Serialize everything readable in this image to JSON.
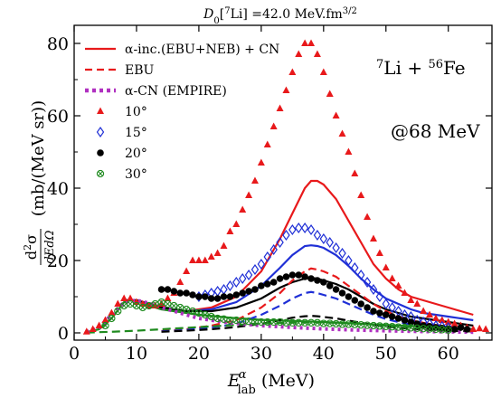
{
  "chart_data": {
    "type": "line",
    "title_prefix": "D",
    "title_sub": "0",
    "title_main": "[",
    "title_sup": "7",
    "title_rest": "Li] =42.0 MeV.fm",
    "title_exp": "3/2",
    "ylabel_numerator": "d",
    "ylabel_numerator_sup": "2",
    "ylabel_numerator_sym": "σ",
    "ylabel_denominator": "dEdΩ",
    "ylabel_units": "(mb/(MeV sr))",
    "xlabel_symbol": "E",
    "xlabel_sup": "α",
    "xlabel_sub": "lab",
    "xlabel_units": "(MeV)",
    "xlim": [
      0,
      67
    ],
    "ylim": [
      -2,
      85
    ],
    "xticks": [
      0,
      10,
      20,
      30,
      40,
      50,
      60
    ],
    "yticks": [
      0,
      20,
      40,
      60,
      80
    ],
    "annotations": {
      "reaction_sup1": "7",
      "reaction_el1": "Li + ",
      "reaction_sup2": "56",
      "reaction_el2": "Fe",
      "energy": "@68 MeV"
    },
    "legend": {
      "placement": "top-left",
      "entries": [
        {
          "label": "α-inc.(EBU+NEB) + CN",
          "style": "solid",
          "color": "#e8191b"
        },
        {
          "label": "EBU",
          "style": "dashed",
          "color": "#e8191b"
        },
        {
          "label": "α-CN (EMPIRE)",
          "style": "dotted",
          "color": "#b030c0"
        },
        {
          "label": "10°",
          "marker": "triangle",
          "color": "#e8191b"
        },
        {
          "label": "15°",
          "marker": "diamond",
          "color": "#1f2fd6"
        },
        {
          "label": "20°",
          "marker": "circle",
          "color": "#000000"
        },
        {
          "label": "30°",
          "marker": "xcircle",
          "color": "#1e8a1e"
        }
      ]
    },
    "series": [
      {
        "name": "10°",
        "kind": "points",
        "marker": "triangle",
        "color": "#e8191b",
        "x": [
          2,
          3,
          4,
          5,
          6,
          7,
          8,
          9,
          10,
          11,
          12,
          13,
          14,
          15,
          16,
          17,
          18,
          19,
          20,
          21,
          22,
          23,
          24,
          25,
          26,
          27,
          28,
          29,
          30,
          31,
          32,
          33,
          34,
          35,
          36,
          37,
          38,
          39,
          40,
          41,
          42,
          43,
          44,
          45,
          46,
          47,
          48,
          49,
          50,
          51,
          52,
          53,
          54,
          55,
          56,
          57,
          58,
          59,
          60,
          61,
          62,
          63,
          64,
          65,
          66
        ],
        "y": [
          0.3,
          1,
          2,
          3.5,
          5.5,
          8,
          9.5,
          9.5,
          8.5,
          8,
          7.5,
          7.5,
          8,
          9.5,
          11,
          14,
          17,
          20,
          20,
          20,
          21,
          22,
          24,
          28,
          30,
          34,
          38,
          42,
          47,
          52,
          57,
          62,
          67,
          72,
          77,
          80,
          80,
          77,
          72,
          66,
          60,
          55,
          50,
          44,
          38,
          32,
          26,
          22,
          18,
          15,
          13,
          11,
          9,
          8,
          6,
          5,
          4,
          3.5,
          3,
          2.5,
          2,
          1.5,
          1,
          1.2,
          1
        ]
      },
      {
        "name": "15°",
        "kind": "points",
        "marker": "diamond",
        "color": "#1f2fd6",
        "x": [
          20,
          21,
          22,
          23,
          24,
          25,
          26,
          27,
          28,
          29,
          30,
          31,
          32,
          33,
          34,
          35,
          36,
          37,
          38,
          39,
          40,
          41,
          42,
          43,
          44,
          45,
          46,
          47,
          48,
          49,
          50,
          51,
          52,
          53,
          54,
          55,
          56,
          57,
          58,
          59,
          60
        ],
        "y": [
          10,
          10.5,
          11,
          11.5,
          12,
          13,
          14,
          15,
          16,
          17.5,
          19,
          21,
          23,
          25,
          27,
          28.5,
          29,
          29,
          28.5,
          27,
          26,
          25,
          23.5,
          22,
          20,
          18,
          16,
          14,
          12,
          10,
          8,
          7,
          6,
          5,
          4.5,
          3.5,
          3,
          2.5,
          2,
          1.8,
          1.5
        ]
      },
      {
        "name": "20°",
        "kind": "points",
        "marker": "circle",
        "color": "#000000",
        "x": [
          14,
          15,
          16,
          17,
          18,
          19,
          20,
          21,
          22,
          23,
          24,
          25,
          26,
          27,
          28,
          29,
          30,
          31,
          32,
          33,
          34,
          35,
          36,
          37,
          38,
          39,
          40,
          41,
          42,
          43,
          44,
          45,
          46,
          47,
          48,
          49,
          50,
          51,
          52,
          53,
          54,
          55,
          56,
          57,
          58,
          59,
          60,
          61,
          62,
          63
        ],
        "y": [
          12,
          12,
          11.5,
          11,
          11,
          10.5,
          10,
          10,
          9.5,
          9.5,
          10,
          10,
          10.5,
          11,
          11.5,
          12,
          13,
          13.5,
          14,
          15,
          15.5,
          16,
          16,
          15.5,
          15,
          14.5,
          14,
          13,
          12,
          11,
          10,
          9,
          8,
          7,
          6,
          5.5,
          5,
          4.5,
          4,
          3.5,
          3,
          2.5,
          2,
          1.8,
          1.5,
          1.3,
          1.1,
          1,
          1.5,
          1
        ]
      },
      {
        "name": "30°",
        "kind": "points",
        "marker": "xcircle",
        "color": "#1e8a1e",
        "x": [
          5,
          6,
          7,
          8,
          9,
          10,
          11,
          12,
          13,
          14,
          15,
          16,
          17,
          18,
          19,
          20,
          21,
          22,
          23,
          24,
          25,
          26,
          27,
          28,
          29,
          30,
          31,
          32,
          33,
          34,
          35,
          36,
          37,
          38,
          39,
          40,
          41,
          42,
          43,
          44,
          45,
          46,
          47,
          48,
          49,
          50,
          51,
          52,
          53,
          54,
          55,
          56,
          57,
          58,
          59,
          60
        ],
        "y": [
          2,
          4,
          6,
          7.5,
          8,
          7.5,
          7,
          7.5,
          8,
          8.5,
          8,
          7.5,
          7,
          6.5,
          6,
          5.5,
          5,
          4.5,
          4,
          3.8,
          3.5,
          3.5,
          3.2,
          3.2,
          3,
          3,
          3,
          3,
          3,
          2.8,
          2.8,
          2.8,
          2.8,
          2.8,
          2.8,
          2.6,
          2.6,
          2.5,
          2.4,
          2.4,
          2.3,
          2.2,
          2.1,
          2,
          1.9,
          1.8,
          1.7,
          1.6,
          1.5,
          1.4,
          1.3,
          1.2,
          1.1,
          1,
          0.9,
          0.8
        ]
      },
      {
        "name": "",
        "kind": "line",
        "style": "solid",
        "color": "#e8191b",
        "x": [
          8,
          10,
          14,
          18,
          22,
          26,
          30,
          33,
          35,
          37,
          38,
          39,
          40,
          42,
          44,
          46,
          48,
          50,
          52,
          54,
          56,
          58,
          60,
          62,
          64
        ],
        "y": [
          9,
          9,
          7,
          6,
          7,
          10,
          17,
          26,
          33,
          40,
          42,
          42,
          41,
          37,
          31,
          25,
          19,
          15,
          12,
          10,
          9,
          8,
          7,
          6,
          5
        ]
      },
      {
        "name": "",
        "kind": "line",
        "style": "solid",
        "color": "#1f2fd6",
        "x": [
          8,
          10,
          14,
          18,
          22,
          26,
          30,
          33,
          35,
          37,
          38,
          39,
          40,
          42,
          44,
          46,
          48,
          50,
          52,
          54,
          56,
          58,
          60,
          62,
          64
        ],
        "y": [
          9,
          9,
          7,
          6,
          6.5,
          8.5,
          13,
          18,
          21.5,
          24,
          24.2,
          24,
          23.5,
          21.5,
          18.5,
          15,
          12,
          9.5,
          8,
          6.5,
          5.5,
          5,
          4.5,
          4,
          3.5
        ]
      },
      {
        "name": "",
        "kind": "line",
        "style": "solid",
        "color": "#000000",
        "x": [
          8,
          10,
          14,
          18,
          22,
          26,
          30,
          33,
          35,
          37,
          38,
          39,
          40,
          42,
          44,
          46,
          48,
          50,
          52,
          54,
          56,
          58,
          60,
          62,
          64
        ],
        "y": [
          9,
          9,
          7,
          6,
          6,
          7,
          9.5,
          12.5,
          14,
          15,
          15.2,
          15,
          14.5,
          13.5,
          12,
          10,
          8,
          6.5,
          5.5,
          4.5,
          4,
          3.5,
          3,
          2.5,
          2
        ]
      },
      {
        "name": "",
        "kind": "line",
        "style": "solid",
        "color": "#1e8a1e",
        "x": [
          2,
          4,
          6,
          8,
          9,
          10,
          12,
          14,
          16,
          18,
          20,
          25,
          30,
          35,
          40,
          45,
          50,
          55,
          60,
          64
        ],
        "y": [
          0.2,
          1,
          4,
          8.5,
          9.2,
          8.8,
          7.5,
          6.5,
          6,
          5.5,
          5,
          4.2,
          3.6,
          3.3,
          3,
          2.6,
          2.2,
          1.8,
          1.4,
          1.1
        ]
      },
      {
        "name": "",
        "kind": "line",
        "style": "dashed",
        "color": "#e8191b",
        "x": [
          14,
          18,
          22,
          26,
          30,
          33,
          35,
          37,
          38,
          39,
          40,
          42,
          44,
          46,
          48,
          50,
          52,
          54,
          56,
          58,
          60,
          62,
          64
        ],
        "y": [
          0.5,
          1,
          2,
          3.5,
          7,
          11,
          14.5,
          17,
          17.8,
          17.5,
          17,
          15.5,
          13,
          10.5,
          8,
          6,
          4.5,
          3.5,
          2.8,
          2.2,
          1.8,
          1.4,
          1
        ]
      },
      {
        "name": "",
        "kind": "line",
        "style": "dashed",
        "color": "#1f2fd6",
        "x": [
          14,
          18,
          22,
          26,
          30,
          33,
          35,
          37,
          38,
          39,
          40,
          42,
          44,
          46,
          48,
          50,
          52,
          54,
          56,
          58,
          60,
          62,
          64
        ],
        "y": [
          0.4,
          0.8,
          1.5,
          2.5,
          5,
          7.5,
          9.5,
          11,
          11.3,
          11,
          10.5,
          9.5,
          8,
          6.5,
          5,
          3.8,
          3,
          2.3,
          1.8,
          1.5,
          1.2,
          1,
          0.8
        ]
      },
      {
        "name": "",
        "kind": "line",
        "style": "dashed",
        "color": "#000000",
        "x": [
          14,
          18,
          22,
          26,
          30,
          33,
          35,
          37,
          38,
          39,
          40,
          42,
          44,
          46,
          48,
          50,
          52,
          54,
          56,
          58,
          60,
          62,
          64
        ],
        "y": [
          0.3,
          0.6,
          1,
          1.6,
          2.5,
          3.5,
          4.2,
          4.6,
          4.7,
          4.6,
          4.4,
          4,
          3.4,
          2.8,
          2.2,
          1.8,
          1.4,
          1.1,
          0.9,
          0.7,
          0.6,
          0.5,
          0.4
        ]
      },
      {
        "name": "",
        "kind": "line",
        "style": "dashed",
        "color": "#1e8a1e",
        "x": [
          2,
          6,
          10,
          14,
          18,
          22,
          26,
          30,
          34,
          38,
          42,
          46,
          50,
          54,
          58,
          62,
          64
        ],
        "y": [
          0.1,
          0.3,
          0.6,
          1,
          1.4,
          1.8,
          2.2,
          2.6,
          2.8,
          2.9,
          2.8,
          2.5,
          2,
          1.6,
          1.2,
          0.8,
          0.6
        ]
      },
      {
        "name": "",
        "kind": "line",
        "style": "dotted",
        "color": "#b030c0",
        "x": [
          2,
          4,
          6,
          8,
          10,
          12,
          14,
          16,
          18,
          20,
          25,
          30,
          35,
          40,
          45,
          50,
          55,
          60,
          64
        ],
        "y": [
          0.2,
          1.5,
          5,
          8.5,
          9,
          8.2,
          7,
          6,
          5,
          4,
          2.8,
          2,
          1.5,
          1.1,
          0.8,
          0.6,
          0.4,
          0.3,
          0.2
        ]
      }
    ]
  }
}
